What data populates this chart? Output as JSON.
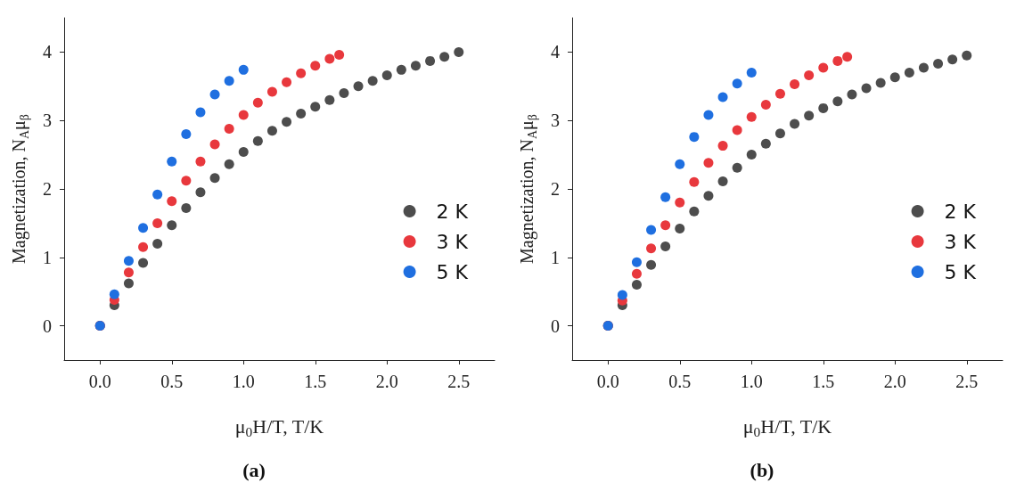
{
  "chart_data": [
    {
      "type": "scatter",
      "xlabel": "μ$_{0}$H/T, T/K",
      "ylabel": "Magnetization, N$_{A}$μ$_{β}$",
      "annotations": [
        "(a)"
      ],
      "marker": "circle",
      "legend": "right",
      "grid": false,
      "xlim": [
        -0.25,
        2.75
      ],
      "ylim": [
        -0.5,
        4.5
      ],
      "xticks": [
        {
          "value": 0,
          "label": "0.0"
        },
        0.5,
        {
          "value": 1,
          "label": "1.0"
        },
        1.5,
        {
          "value": 2,
          "label": "2.0"
        },
        2.5
      ],
      "yticks": [
        0,
        1,
        2,
        3,
        4
      ],
      "series": [
        {
          "name": "2 K",
          "color": "#4d4d4d",
          "x": [
            0,
            0.1,
            0.2,
            0.3,
            0.4,
            0.5,
            0.6,
            0.7,
            0.8,
            0.9,
            1.0,
            1.1,
            1.2,
            1.3,
            1.4,
            1.5,
            1.6,
            1.7,
            1.8,
            1.9,
            2.0,
            2.1,
            2.2,
            2.3,
            2.4,
            2.5
          ],
          "values": [
            0,
            0.3,
            0.62,
            0.92,
            1.2,
            1.47,
            1.72,
            1.95,
            2.16,
            2.36,
            2.54,
            2.7,
            2.85,
            2.98,
            3.1,
            3.2,
            3.3,
            3.4,
            3.5,
            3.58,
            3.66,
            3.74,
            3.8,
            3.87,
            3.93,
            4.0
          ]
        },
        {
          "name": "3 K",
          "color": "#e8383d",
          "x": [
            0,
            0.1,
            0.2,
            0.3,
            0.4,
            0.5,
            0.6,
            0.7,
            0.8,
            0.9,
            1.0,
            1.1,
            1.2,
            1.3,
            1.4,
            1.5,
            1.6,
            1.667
          ],
          "values": [
            0,
            0.38,
            0.78,
            1.15,
            1.5,
            1.82,
            2.12,
            2.4,
            2.65,
            2.88,
            3.08,
            3.26,
            3.42,
            3.56,
            3.69,
            3.8,
            3.9,
            3.96
          ]
        },
        {
          "name": "5 K",
          "color": "#1f6fe0",
          "x": [
            0,
            0.1,
            0.2,
            0.3,
            0.4,
            0.5,
            0.6,
            0.7,
            0.8,
            0.9,
            1.0
          ],
          "values": [
            0,
            0.46,
            0.95,
            1.43,
            1.92,
            2.4,
            2.8,
            3.12,
            3.38,
            3.58,
            3.74
          ]
        }
      ]
    },
    {
      "type": "scatter",
      "xlabel": "μ$_{0}$H/T, T/K",
      "ylabel": "Magnetization, N$_{A}$μ$_{β}$",
      "annotations": [
        "(b)"
      ],
      "marker": "circle",
      "legend": "right",
      "grid": false,
      "xlim": [
        -0.25,
        2.75
      ],
      "ylim": [
        -0.5,
        4.5
      ],
      "xticks": [
        {
          "value": 0,
          "label": "0.0"
        },
        0.5,
        {
          "value": 1,
          "label": "1.0"
        },
        1.5,
        {
          "value": 2,
          "label": "2.0"
        },
        2.5
      ],
      "yticks": [
        0,
        1,
        2,
        3,
        4
      ],
      "series": [
        {
          "name": "2 K",
          "color": "#4d4d4d",
          "x": [
            0,
            0.1,
            0.2,
            0.3,
            0.4,
            0.5,
            0.6,
            0.7,
            0.8,
            0.9,
            1.0,
            1.1,
            1.2,
            1.3,
            1.4,
            1.5,
            1.6,
            1.7,
            1.8,
            1.9,
            2.0,
            2.1,
            2.2,
            2.3,
            2.4,
            2.5
          ],
          "values": [
            0,
            0.3,
            0.6,
            0.89,
            1.16,
            1.42,
            1.67,
            1.9,
            2.11,
            2.31,
            2.5,
            2.66,
            2.81,
            2.95,
            3.07,
            3.18,
            3.28,
            3.38,
            3.47,
            3.55,
            3.63,
            3.7,
            3.77,
            3.83,
            3.89,
            3.95
          ]
        },
        {
          "name": "3 K",
          "color": "#e8383d",
          "x": [
            0,
            0.1,
            0.2,
            0.3,
            0.4,
            0.5,
            0.6,
            0.7,
            0.8,
            0.9,
            1.0,
            1.1,
            1.2,
            1.3,
            1.4,
            1.5,
            1.6,
            1.667
          ],
          "values": [
            0,
            0.37,
            0.76,
            1.13,
            1.47,
            1.8,
            2.1,
            2.38,
            2.63,
            2.86,
            3.05,
            3.23,
            3.39,
            3.53,
            3.66,
            3.77,
            3.87,
            3.93
          ]
        },
        {
          "name": "5 K",
          "color": "#1f6fe0",
          "x": [
            0,
            0.1,
            0.2,
            0.3,
            0.4,
            0.5,
            0.6,
            0.7,
            0.8,
            0.9,
            1.0
          ],
          "values": [
            0,
            0.45,
            0.93,
            1.4,
            1.88,
            2.36,
            2.76,
            3.08,
            3.34,
            3.54,
            3.7
          ]
        }
      ]
    }
  ]
}
